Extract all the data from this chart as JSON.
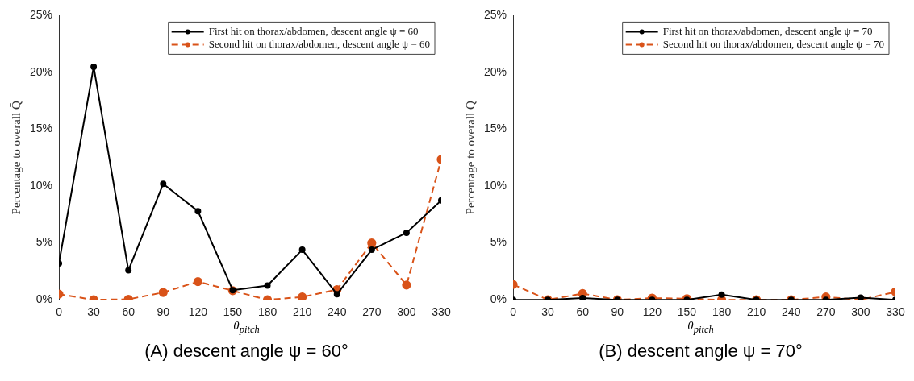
{
  "chart_data": [
    {
      "type": "line",
      "title": "(A) descent angle ψ = 60°",
      "xlabel": "θ$_{pitch}$",
      "ylabel": "Percentage to overall Q̄",
      "x": [
        0,
        30,
        60,
        90,
        120,
        150,
        180,
        210,
        240,
        270,
        300,
        330
      ],
      "xlim": [
        0,
        330
      ],
      "xticks": [
        0,
        30,
        60,
        90,
        120,
        150,
        180,
        210,
        240,
        270,
        300,
        330
      ],
      "ylim": [
        0,
        25
      ],
      "yticks": [
        {
          "value": 0,
          "label": "0%"
        },
        {
          "value": 5,
          "label": "5%"
        },
        {
          "value": 10,
          "label": "10%"
        },
        {
          "value": 15,
          "label": "15%"
        },
        {
          "value": 20,
          "label": "20%"
        },
        {
          "value": 25,
          "label": "25%"
        }
      ],
      "marker": "circle",
      "legend": "top right",
      "series": [
        {
          "name": "First hit on thorax/abdomen, descent angle ψ = 60",
          "color": "#000000",
          "line_style": "solid",
          "values": [
            3.2,
            20.5,
            2.6,
            10.2,
            7.8,
            0.85,
            1.25,
            4.4,
            0.5,
            4.4,
            5.9,
            8.75
          ]
        },
        {
          "name": "Second hit on thorax/abdomen, descent angle ψ = 60",
          "color": "#d95319",
          "line_style": "dashed",
          "values": [
            0.5,
            0,
            0.05,
            0.65,
            1.6,
            0.8,
            0,
            0.25,
            0.9,
            5.0,
            1.3,
            12.35
          ]
        }
      ]
    },
    {
      "type": "line",
      "title": "(B) descent angle ψ = 70°",
      "xlabel": "θ$_{pitch}$",
      "ylabel": "Percentage to overall Q̄",
      "x": [
        0,
        30,
        60,
        90,
        120,
        150,
        180,
        210,
        240,
        270,
        300,
        330
      ],
      "xlim": [
        0,
        330
      ],
      "xticks": [
        0,
        30,
        60,
        90,
        120,
        150,
        180,
        210,
        240,
        270,
        300,
        330
      ],
      "ylim": [
        0,
        25
      ],
      "yticks": [
        {
          "value": 0,
          "label": "0%"
        },
        {
          "value": 5,
          "label": "5%"
        },
        {
          "value": 10,
          "label": "10%"
        },
        {
          "value": 15,
          "label": "15%"
        },
        {
          "value": 20,
          "label": "20%"
        },
        {
          "value": 25,
          "label": "25%"
        }
      ],
      "marker": "circle",
      "legend": "top right",
      "series": [
        {
          "name": "First hit on thorax/abdomen, descent angle ψ = 70",
          "color": "#000000",
          "line_style": "solid",
          "values": [
            0,
            0,
            0.15,
            0,
            0,
            0,
            0.45,
            0,
            0,
            0,
            0.2,
            0
          ]
        },
        {
          "name": "Second hit on thorax/abdomen, descent angle ψ = 70",
          "color": "#d95319",
          "line_style": "dashed",
          "values": [
            1.35,
            0,
            0.55,
            0,
            0.15,
            0.1,
            0,
            0,
            0,
            0.25,
            0,
            0.7
          ]
        }
      ]
    }
  ]
}
